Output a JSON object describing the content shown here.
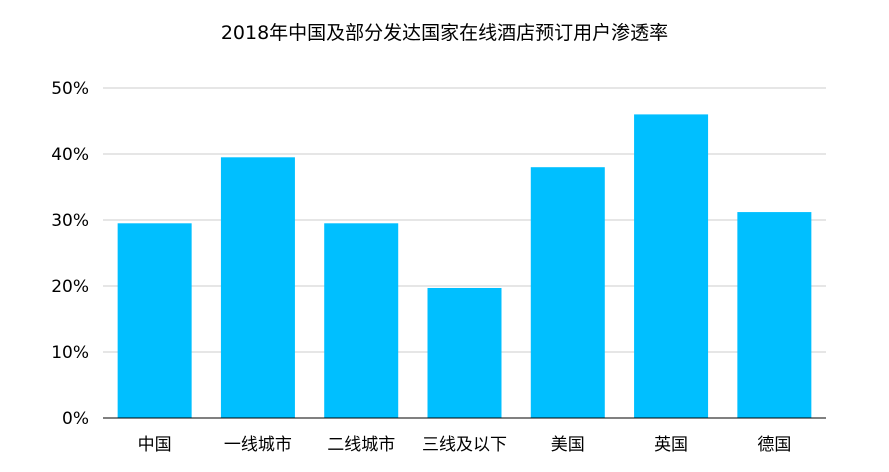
{
  "chart_data": {
    "type": "bar",
    "title": "2018年中国及部分发达国家在线酒店预订用户渗透率",
    "xlabel": "",
    "ylabel": "",
    "categories": [
      "中国",
      "一线城市",
      "二线城市",
      "三线及以下",
      "美国",
      "英国",
      "德国"
    ],
    "values": [
      29.5,
      39.5,
      29.5,
      19.7,
      38.0,
      46.0,
      31.2
    ],
    "ylim": [
      0,
      50
    ],
    "yticks": [
      0,
      10,
      20,
      30,
      40,
      50
    ],
    "ytick_labels": [
      "0%",
      "10%",
      "20%",
      "30%",
      "40%",
      "50%"
    ],
    "grid": true,
    "bar_color": "#00BFFF",
    "grid_color": "#CCCCCC",
    "axis_color": "#000000"
  }
}
